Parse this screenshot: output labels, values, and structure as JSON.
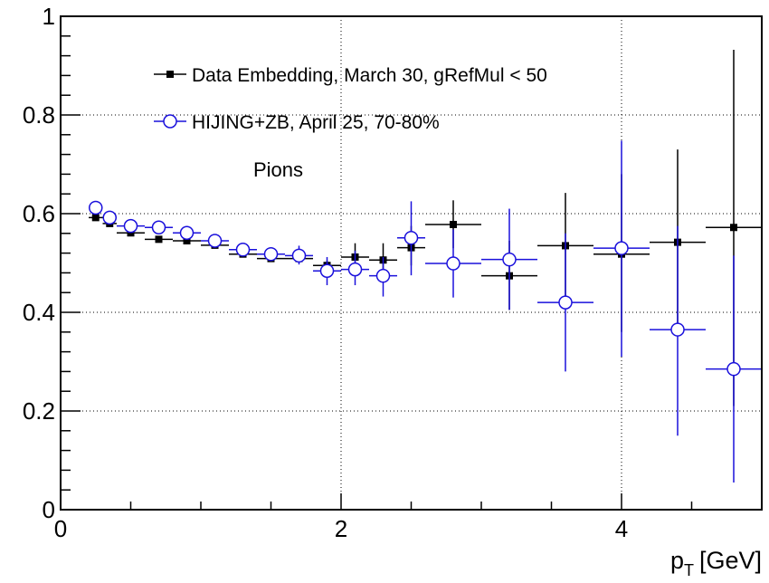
{
  "chart_data": {
    "type": "scatter",
    "title": "",
    "xlabel": "p",
    "xlabel_sub": "T",
    "xlabel_unit": "[GeV]",
    "ylabel": "",
    "xlim": [
      0,
      5
    ],
    "ylim": [
      0,
      1
    ],
    "grid": true,
    "legend_position": "top-left",
    "x_ticks": [
      {
        "value": 0,
        "label": "0"
      },
      {
        "value": 2,
        "label": "2"
      },
      {
        "value": 4,
        "label": "4"
      }
    ],
    "y_ticks": [
      {
        "value": 0,
        "label": "0"
      },
      {
        "value": 0.2,
        "label": "0.2"
      },
      {
        "value": 0.4,
        "label": "0.4"
      },
      {
        "value": 0.6,
        "label": "0.6"
      },
      {
        "value": 0.8,
        "label": "0.8"
      },
      {
        "value": 1,
        "label": "1"
      }
    ],
    "annotation": "Pions",
    "series": [
      {
        "name": "Data Embedding, March 30, gRefMul < 50",
        "color": "#000000",
        "marker": "filled-square",
        "points": [
          {
            "x": 0.25,
            "xlo": 0.2,
            "xhi": 0.3,
            "y": 0.592,
            "ylo": 0.588,
            "yhi": 0.596
          },
          {
            "x": 0.35,
            "xlo": 0.3,
            "xhi": 0.4,
            "y": 0.58,
            "ylo": 0.576,
            "yhi": 0.584
          },
          {
            "x": 0.5,
            "xlo": 0.4,
            "xhi": 0.6,
            "y": 0.561,
            "ylo": 0.557,
            "yhi": 0.565
          },
          {
            "x": 0.7,
            "xlo": 0.6,
            "xhi": 0.8,
            "y": 0.548,
            "ylo": 0.544,
            "yhi": 0.552
          },
          {
            "x": 0.9,
            "xlo": 0.8,
            "xhi": 1.0,
            "y": 0.545,
            "ylo": 0.541,
            "yhi": 0.549
          },
          {
            "x": 1.1,
            "xlo": 1.0,
            "xhi": 1.2,
            "y": 0.536,
            "ylo": 0.532,
            "yhi": 0.54
          },
          {
            "x": 1.3,
            "xlo": 1.2,
            "xhi": 1.4,
            "y": 0.518,
            "ylo": 0.513,
            "yhi": 0.523
          },
          {
            "x": 1.5,
            "xlo": 1.4,
            "xhi": 1.6,
            "y": 0.509,
            "ylo": 0.503,
            "yhi": 0.515
          },
          {
            "x": 1.7,
            "xlo": 1.6,
            "xhi": 1.8,
            "y": 0.509,
            "ylo": 0.502,
            "yhi": 0.516
          },
          {
            "x": 1.9,
            "xlo": 1.8,
            "xhi": 2.0,
            "y": 0.495,
            "ylo": 0.485,
            "yhi": 0.505
          },
          {
            "x": 2.1,
            "xlo": 2.0,
            "xhi": 2.2,
            "y": 0.512,
            "ylo": 0.495,
            "yhi": 0.54
          },
          {
            "x": 2.3,
            "xlo": 2.2,
            "xhi": 2.4,
            "y": 0.506,
            "ylo": 0.485,
            "yhi": 0.54
          },
          {
            "x": 2.5,
            "xlo": 2.4,
            "xhi": 2.6,
            "y": 0.531,
            "ylo": 0.495,
            "yhi": 0.575
          },
          {
            "x": 2.8,
            "xlo": 2.6,
            "xhi": 3.0,
            "y": 0.578,
            "ylo": 0.53,
            "yhi": 0.627
          },
          {
            "x": 3.2,
            "xlo": 3.0,
            "xhi": 3.4,
            "y": 0.474,
            "ylo": 0.405,
            "yhi": 0.545
          },
          {
            "x": 3.6,
            "xlo": 3.4,
            "xhi": 3.8,
            "y": 0.535,
            "ylo": 0.425,
            "yhi": 0.642
          },
          {
            "x": 4.0,
            "xlo": 3.8,
            "xhi": 4.2,
            "y": 0.518,
            "ylo": 0.36,
            "yhi": 0.68
          },
          {
            "x": 4.4,
            "xlo": 4.2,
            "xhi": 4.6,
            "y": 0.542,
            "ylo": 0.355,
            "yhi": 0.73
          },
          {
            "x": 4.8,
            "xlo": 4.6,
            "xhi": 5.0,
            "y": 0.572,
            "ylo": 0.21,
            "yhi": 0.932
          }
        ]
      },
      {
        "name": "HIJING+ZB, April 25, 70-80%",
        "color": "#1a10dc",
        "marker": "open-circle",
        "points": [
          {
            "x": 0.25,
            "xlo": 0.2,
            "xhi": 0.3,
            "y": 0.612,
            "ylo": 0.608,
            "yhi": 0.616
          },
          {
            "x": 0.35,
            "xlo": 0.3,
            "xhi": 0.4,
            "y": 0.592,
            "ylo": 0.588,
            "yhi": 0.596
          },
          {
            "x": 0.5,
            "xlo": 0.4,
            "xhi": 0.6,
            "y": 0.575,
            "ylo": 0.571,
            "yhi": 0.579
          },
          {
            "x": 0.7,
            "xlo": 0.6,
            "xhi": 0.8,
            "y": 0.572,
            "ylo": 0.568,
            "yhi": 0.576
          },
          {
            "x": 0.9,
            "xlo": 0.8,
            "xhi": 1.0,
            "y": 0.561,
            "ylo": 0.557,
            "yhi": 0.565
          },
          {
            "x": 1.1,
            "xlo": 1.0,
            "xhi": 1.2,
            "y": 0.545,
            "ylo": 0.54,
            "yhi": 0.55
          },
          {
            "x": 1.3,
            "xlo": 1.2,
            "xhi": 1.4,
            "y": 0.527,
            "ylo": 0.52,
            "yhi": 0.534
          },
          {
            "x": 1.5,
            "xlo": 1.4,
            "xhi": 1.6,
            "y": 0.518,
            "ylo": 0.505,
            "yhi": 0.531
          },
          {
            "x": 1.7,
            "xlo": 1.6,
            "xhi": 1.8,
            "y": 0.515,
            "ylo": 0.497,
            "yhi": 0.535
          },
          {
            "x": 1.9,
            "xlo": 1.8,
            "xhi": 2.0,
            "y": 0.484,
            "ylo": 0.455,
            "yhi": 0.512
          },
          {
            "x": 2.1,
            "xlo": 2.0,
            "xhi": 2.2,
            "y": 0.487,
            "ylo": 0.455,
            "yhi": 0.525
          },
          {
            "x": 2.3,
            "xlo": 2.2,
            "xhi": 2.4,
            "y": 0.474,
            "ylo": 0.432,
            "yhi": 0.512
          },
          {
            "x": 2.5,
            "xlo": 2.4,
            "xhi": 2.6,
            "y": 0.551,
            "ylo": 0.475,
            "yhi": 0.625
          },
          {
            "x": 2.8,
            "xlo": 2.6,
            "xhi": 3.0,
            "y": 0.499,
            "ylo": 0.43,
            "yhi": 0.568
          },
          {
            "x": 3.2,
            "xlo": 3.0,
            "xhi": 3.4,
            "y": 0.507,
            "ylo": 0.405,
            "yhi": 0.61
          },
          {
            "x": 3.6,
            "xlo": 3.4,
            "xhi": 3.8,
            "y": 0.42,
            "ylo": 0.28,
            "yhi": 0.56
          },
          {
            "x": 4.0,
            "xlo": 3.8,
            "xhi": 4.2,
            "y": 0.53,
            "ylo": 0.31,
            "yhi": 0.748
          },
          {
            "x": 4.4,
            "xlo": 4.2,
            "xhi": 4.6,
            "y": 0.365,
            "ylo": 0.15,
            "yhi": 0.575
          },
          {
            "x": 4.8,
            "xlo": 4.6,
            "xhi": 5.0,
            "y": 0.285,
            "ylo": 0.055,
            "yhi": 0.515
          }
        ]
      }
    ]
  }
}
